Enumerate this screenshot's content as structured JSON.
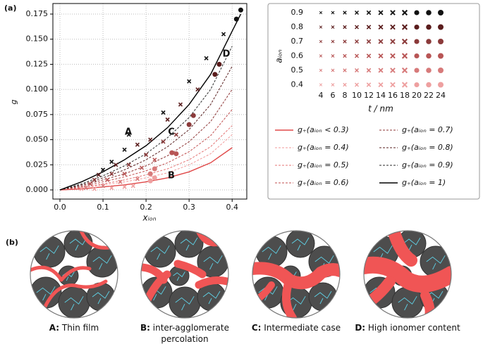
{
  "chart_data": {
    "type": "line",
    "panel_label": "(a)",
    "xlabel": "xᵢₒₙ",
    "ylabel": "g",
    "xlim": [
      -0.0164,
      0.434
    ],
    "ylim": [
      -0.0091,
      0.1855
    ],
    "xticks": [
      {
        "value": 0,
        "label": "0.0"
      },
      {
        "value": 0.1,
        "label": "0.1"
      },
      {
        "value": 0.2,
        "label": "0.2"
      },
      {
        "value": 0.3,
        "label": "0.3"
      },
      {
        "value": 0.4,
        "label": "0.4"
      }
    ],
    "yticks": [
      {
        "value": 0,
        "label": "0.000"
      },
      {
        "value": 0.025,
        "label": "0.025"
      },
      {
        "value": 0.05,
        "label": "0.050"
      },
      {
        "value": 0.075,
        "label": "0.075"
      },
      {
        "value": 0.1,
        "label": "0.100"
      },
      {
        "value": 0.125,
        "label": "0.125"
      },
      {
        "value": 0.15,
        "label": "0.150"
      },
      {
        "value": 0.175,
        "label": "0.175"
      }
    ],
    "grid": true,
    "x": [
      0,
      0.05,
      0.1,
      0.15,
      0.2,
      0.25,
      0.3,
      0.35,
      0.4,
      0.42
    ],
    "series": [
      {
        "name": "g₊(aᵢₒₙ < 0.3)",
        "color": "#e04848",
        "dash": false,
        "values": [
          0,
          0.001,
          0.003,
          0.005,
          0.008,
          0.012,
          0.018,
          0.027,
          0.042,
          null
        ]
      },
      {
        "name": "g₊(aᵢₒₙ = 0.4)",
        "color": "#f29a9a",
        "dash": true,
        "values": [
          0,
          0.002,
          0.005,
          0.008,
          0.012,
          0.017,
          0.025,
          0.036,
          0.055,
          null
        ]
      },
      {
        "name": "g₊(aᵢₒₙ = 0.5)",
        "color": "#e47474",
        "dash": true,
        "values": [
          0,
          0.002,
          0.006,
          0.01,
          0.015,
          0.021,
          0.03,
          0.043,
          0.064,
          null
        ]
      },
      {
        "name": "g₊(aᵢₒₙ = 0.6)",
        "color": "#c04f4f",
        "dash": true,
        "values": [
          0,
          0.003,
          0.008,
          0.013,
          0.019,
          0.027,
          0.038,
          0.054,
          0.08,
          null
        ]
      },
      {
        "name": "g₊(aᵢₒₙ = 0.7)",
        "color": "#8e3535",
        "dash": true,
        "values": [
          0,
          0.004,
          0.01,
          0.016,
          0.024,
          0.034,
          0.048,
          0.068,
          0.1,
          null
        ]
      },
      {
        "name": "g₊(aᵢₒₙ = 0.8)",
        "color": "#5a2020",
        "dash": true,
        "values": [
          0,
          0.005,
          0.012,
          0.02,
          0.03,
          0.043,
          0.06,
          0.085,
          0.123,
          null
        ]
      },
      {
        "name": "g₊(aᵢₒₙ = 0.9)",
        "color": "#2a2a2a",
        "dash": true,
        "values": [
          0,
          0.006,
          0.014,
          0.024,
          0.036,
          0.052,
          0.072,
          0.1,
          0.143,
          null
        ]
      },
      {
        "name": "g₊(aᵢₒₙ = 1)",
        "color": "#000000",
        "dash": false,
        "values": [
          0,
          0.008,
          0.018,
          0.03,
          0.044,
          0.062,
          0.085,
          0.115,
          0.158,
          0.175
        ]
      }
    ],
    "scatter": [
      {
        "color": "#111111",
        "x": [
          0.1,
          0.12,
          0.15,
          0.16,
          0.24,
          0.3,
          0.34,
          0.38,
          0.41,
          0.42
        ],
        "y": [
          0.02,
          0.028,
          0.04,
          0.055,
          0.077,
          0.108,
          0.131,
          0.155,
          0.17,
          0.179
        ]
      },
      {
        "color": "#5a1c1c",
        "x": [
          0.09,
          0.13,
          0.18,
          0.21,
          0.25,
          0.28,
          0.32,
          0.36,
          0.37
        ],
        "y": [
          0.015,
          0.025,
          0.045,
          0.05,
          0.07,
          0.085,
          0.1,
          0.115,
          0.125
        ]
      },
      {
        "color": "#8b3a3a",
        "x": [
          0.08,
          0.12,
          0.16,
          0.2,
          0.24,
          0.27,
          0.3,
          0.31
        ],
        "y": [
          0.01,
          0.016,
          0.025,
          0.035,
          0.048,
          0.055,
          0.065,
          0.074
        ]
      },
      {
        "color": "#b85555",
        "x": [
          0.07,
          0.11,
          0.15,
          0.19,
          0.22,
          0.26,
          0.27
        ],
        "y": [
          0.006,
          0.01,
          0.016,
          0.022,
          0.03,
          0.037,
          0.036
        ]
      },
      {
        "color": "#d77a7a",
        "x": [
          0.06,
          0.1,
          0.14,
          0.18,
          0.21,
          0.22
        ],
        "y": [
          0.002,
          0.004,
          0.008,
          0.011,
          0.016,
          0.021
        ]
      },
      {
        "color": "#eea0a0",
        "x": [
          0.05,
          0.08,
          0.12,
          0.15,
          0.17,
          0.21,
          0.22
        ],
        "y": [
          0.001,
          0.001,
          0.002,
          0.003,
          0.004,
          0.009,
          0.012
        ]
      }
    ],
    "legend_grid": {
      "ylabel": "aᵢₒₙ",
      "xlabel": "t / nm",
      "a_ticks": [
        0.9,
        0.8,
        0.7,
        0.6,
        0.5,
        0.4
      ],
      "t_ticks": [
        4,
        6,
        8,
        10,
        12,
        14,
        16,
        18,
        20,
        22,
        24
      ]
    },
    "annotations": [
      {
        "text": "A"
      },
      {
        "text": "B"
      },
      {
        "text": "C"
      },
      {
        "text": "D"
      }
    ]
  },
  "panel_b": {
    "label": "(b)",
    "captions": [
      {
        "letter": "A:",
        "text": "Thin film"
      },
      {
        "letter": "B:",
        "text": "inter-agglomerate percolation"
      },
      {
        "letter": "C:",
        "text": "Intermediate case"
      },
      {
        "letter": "D:",
        "text": "High ionomer content"
      }
    ]
  }
}
